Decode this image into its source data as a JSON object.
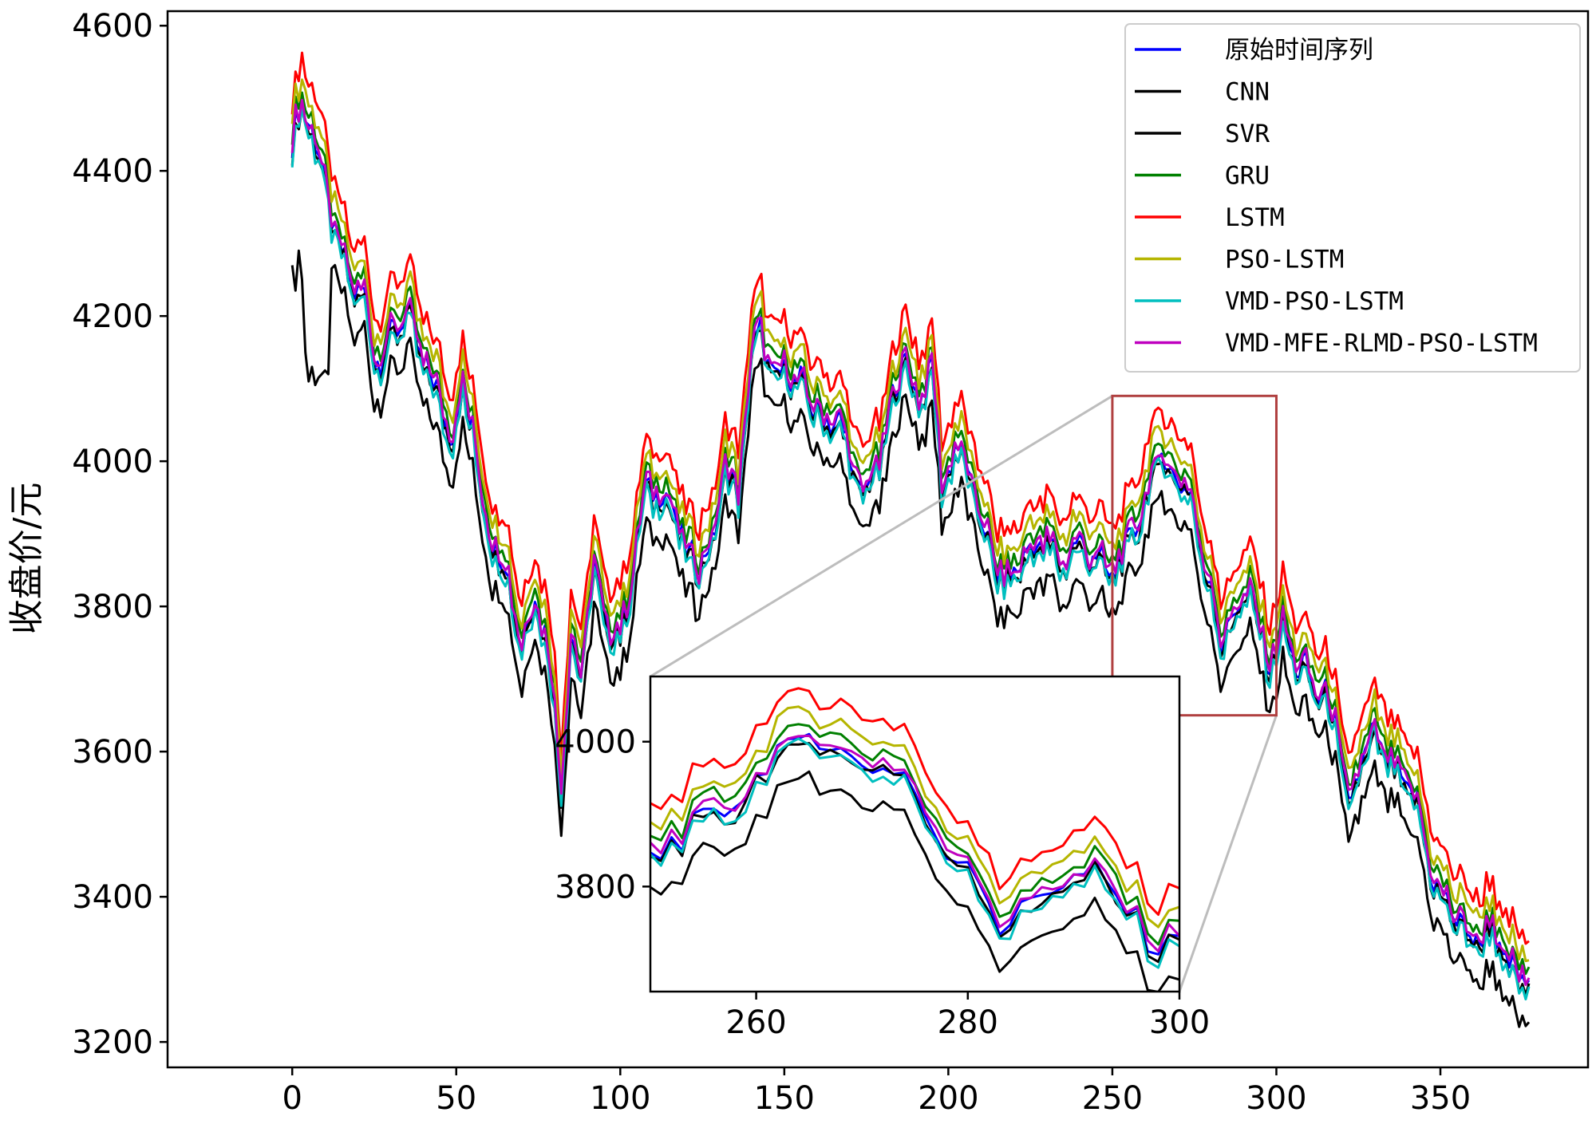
{
  "chart_data": {
    "type": "line",
    "title": "",
    "xlabel": "",
    "ylabel": "收盘价/元",
    "xlim": [
      -38,
      395
    ],
    "ylim": [
      3165,
      4620
    ],
    "xticks": [
      0,
      50,
      100,
      150,
      200,
      250,
      300,
      350
    ],
    "yticks": [
      3200,
      3400,
      3600,
      3800,
      4000,
      4200,
      4400,
      4600
    ],
    "grid": false,
    "legend_position": "top-right",
    "legend": [
      "原始时间序列",
      "CNN",
      "SVR",
      "GRU",
      "LSTM",
      "PSO-LSTM",
      "VMD-PSO-LSTM",
      "VMD-MFE-RLMD-PSO-LSTM"
    ],
    "base_points": {
      "x": [
        0,
        3,
        6,
        10,
        14,
        18,
        22,
        25,
        28,
        31,
        35,
        38,
        42,
        46,
        49,
        52,
        55,
        58,
        62,
        66,
        70,
        74,
        78,
        80,
        82,
        85,
        88,
        92,
        96,
        100,
        104,
        108,
        112,
        116,
        120,
        124,
        128,
        132,
        136,
        140,
        143,
        147,
        151,
        155,
        159,
        163,
        167,
        171,
        175,
        179,
        183,
        187,
        191,
        195,
        198,
        202,
        206,
        210,
        214,
        218,
        222,
        226,
        230,
        234,
        238,
        242,
        246,
        250,
        253,
        256,
        259,
        262,
        265,
        268,
        271,
        274,
        277,
        280,
        283,
        286,
        289,
        292,
        295,
        298,
        302,
        306,
        310,
        314,
        318,
        322,
        326,
        330,
        334,
        338,
        342,
        346,
        350,
        354,
        358,
        362,
        366,
        370,
        374,
        377
      ],
      "y": [
        4440,
        4490,
        4460,
        4380,
        4300,
        4240,
        4230,
        4140,
        4150,
        4180,
        4210,
        4160,
        4120,
        4070,
        4030,
        4100,
        4050,
        3940,
        3880,
        3840,
        3740,
        3820,
        3740,
        3660,
        3560,
        3750,
        3710,
        3850,
        3770,
        3760,
        3850,
        3970,
        3950,
        3940,
        3870,
        3860,
        3880,
        4000,
        3950,
        4150,
        4180,
        4110,
        4130,
        4100,
        4080,
        4050,
        4060,
        3980,
        3960,
        4000,
        4080,
        4150,
        4070,
        4140,
        3960,
        4020,
        3990,
        3920,
        3860,
        3830,
        3860,
        3880,
        3890,
        3860,
        3880,
        3880,
        3860,
        3850,
        3860,
        3910,
        3920,
        3990,
        4010,
        3980,
        3980,
        3950,
        3870,
        3830,
        3750,
        3780,
        3800,
        3830,
        3760,
        3720,
        3770,
        3720,
        3700,
        3680,
        3640,
        3520,
        3590,
        3620,
        3590,
        3560,
        3540,
        3460,
        3400,
        3380,
        3350,
        3340,
        3360,
        3300,
        3290,
        3285
      ]
    },
    "series": [
      {
        "name": "原始时间序列",
        "color": "#0000ff",
        "offset": 0,
        "dashed_start": true
      },
      {
        "name": "CNN",
        "color": "#000000",
        "offset": -8
      },
      {
        "name": "SVR",
        "color": "#000000",
        "offset": -55,
        "short_start": [
          4270,
          4235,
          4290,
          4250,
          4150,
          4110,
          4130,
          4105,
          4115,
          4120,
          4125,
          4120
        ]
      },
      {
        "name": "GRU",
        "color": "#008000",
        "offset": 18
      },
      {
        "name": "LSTM",
        "color": "#ff0000",
        "offset": 62
      },
      {
        "name": "PSO-LSTM",
        "color": "#b5b500",
        "offset": 36
      },
      {
        "name": "VMD-PSO-LSTM",
        "color": "#00bfbf",
        "offset": -12
      },
      {
        "name": "VMD-MFE-RLMD-PSO-LSTM",
        "color": "#bf00bf",
        "offset": 5
      }
    ],
    "inset": {
      "xlim": [
        250,
        300
      ],
      "ylim": [
        3655,
        4090
      ],
      "xticks": [
        260,
        280,
        300
      ],
      "yticks": [
        3800,
        4000
      ],
      "highlight_box": {
        "x": [
          250,
          300
        ],
        "y": [
          3650,
          4090
        ]
      }
    }
  }
}
